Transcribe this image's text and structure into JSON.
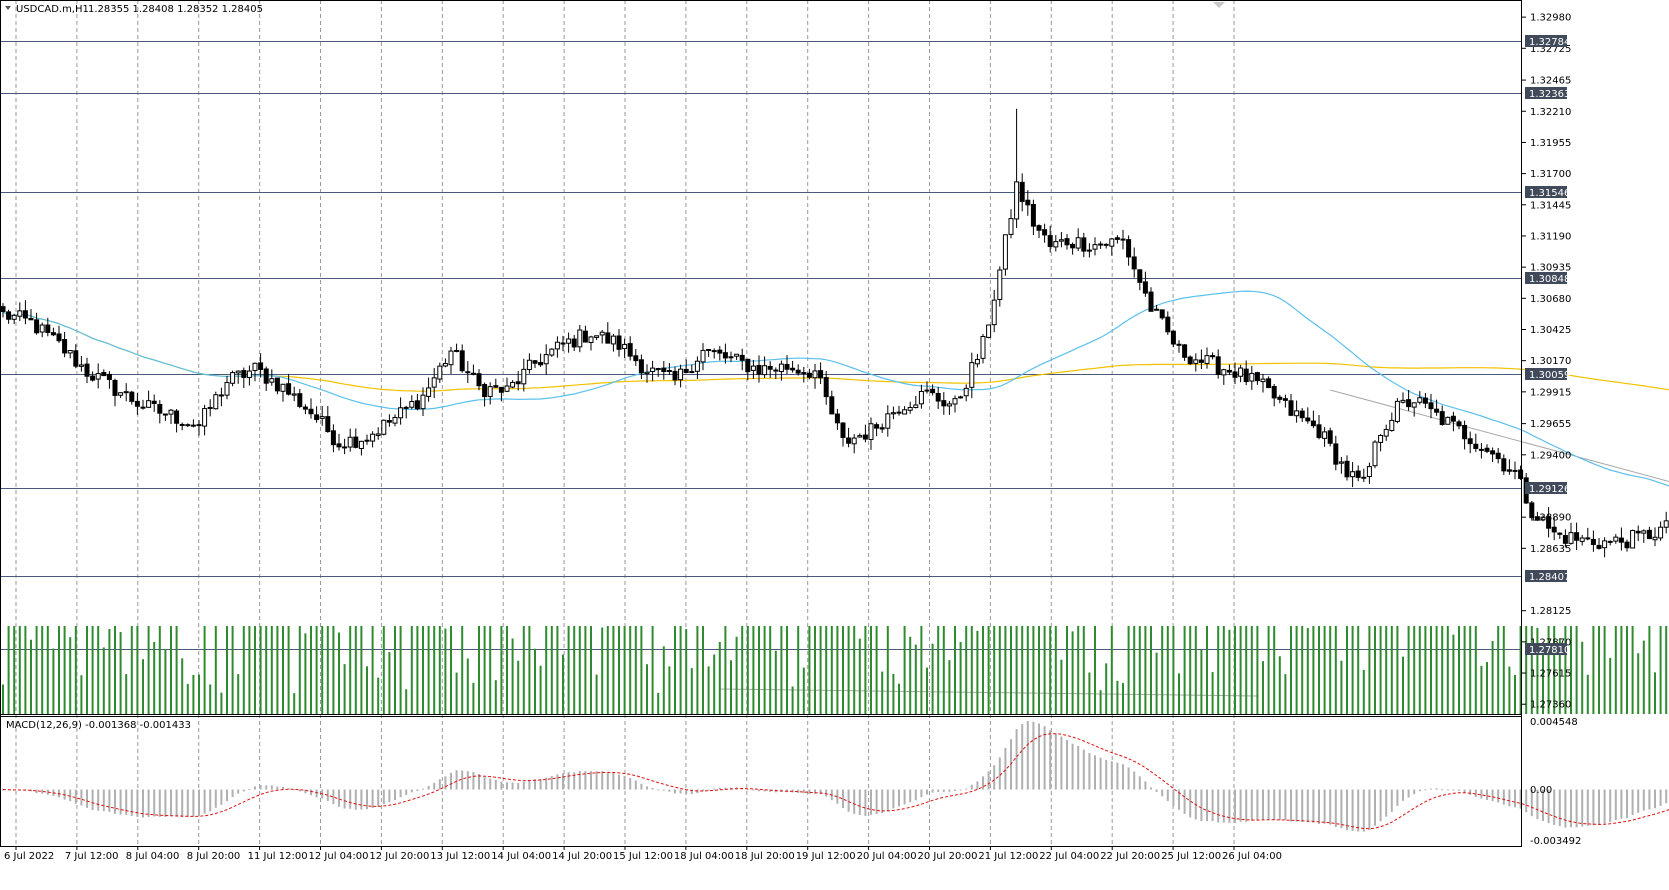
{
  "header": {
    "symbol_timeframe": "USDCAD.m,H1",
    "ohlc_values": "1.28355 1.28408 1.28352 1.28405"
  },
  "macd": {
    "label": "MACD(12,26,9) -0.001368 -0.001433",
    "scale_labels": [
      "0.004548",
      "0.00",
      "-0.003492"
    ]
  },
  "colors": {
    "candle": "#000000",
    "volume": "#2e8b2e",
    "ma_fast": "#5bc0eb",
    "ma_slow": "#f2c200",
    "horizontal_levels": "#4a5a7a",
    "macd_hist": "#b0b0b0",
    "macd_signal": "#e01010",
    "trendline": "#a8a8a8",
    "highlight_box": "#3a5ea8"
  },
  "chart_data": {
    "type": "candlestick",
    "symbol": "USDCAD.m",
    "timeframe": "H1",
    "price_axis_labels": [
      "1.32980",
      "1.32725",
      "1.32465",
      "1.32210",
      "1.31955",
      "1.31700",
      "1.31445",
      "1.31190",
      "1.30935",
      "1.30680",
      "1.30425",
      "1.30170",
      "1.29915",
      "1.29655",
      "1.29400",
      "1.28890",
      "1.28635",
      "1.28125",
      "1.27870",
      "1.27615",
      "1.27360"
    ],
    "price_range": [
      1.2728,
      1.3312
    ],
    "time_axis_labels": [
      "6 Jul 2022",
      "7 Jul 12:00",
      "8 Jul 04:00",
      "8 Jul 20:00",
      "11 Jul 12:00",
      "12 Jul 04:00",
      "12 Jul 20:00",
      "13 Jul 12:00",
      "14 Jul 04:00",
      "14 Jul 20:00",
      "15 Jul 12:00",
      "18 Jul 04:00",
      "18 Jul 20:00",
      "19 Jul 12:00",
      "20 Jul 04:00",
      "20 Jul 20:00",
      "21 Jul 12:00",
      "22 Jul 04:00",
      "22 Jul 20:00",
      "25 Jul 12:00",
      "26 Jul 04:00"
    ],
    "horizontal_levels": [
      "1.32784",
      "1.32363",
      "1.31546",
      "1.30848",
      "1.30059",
      "1.29126",
      "1.28407",
      "1.27810"
    ],
    "current_price_label": "1.28407",
    "close_anchors": [
      [
        0,
        1.3055
      ],
      [
        5,
        1.3048
      ],
      [
        10,
        1.303
      ],
      [
        15,
        1.3008
      ],
      [
        20,
        1.2994
      ],
      [
        25,
        1.298
      ],
      [
        30,
        1.2972
      ],
      [
        35,
        1.2964
      ],
      [
        40,
        1.3
      ],
      [
        45,
        1.301
      ],
      [
        50,
        1.2995
      ],
      [
        55,
        1.2975
      ],
      [
        60,
        1.295
      ],
      [
        65,
        1.2955
      ],
      [
        70,
        1.297
      ],
      [
        75,
        1.2988
      ],
      [
        80,
        1.3025
      ],
      [
        85,
        1.2995
      ],
      [
        90,
        1.2992
      ],
      [
        95,
        1.3015
      ],
      [
        100,
        1.303
      ],
      [
        105,
        1.304
      ],
      [
        110,
        1.303
      ],
      [
        115,
        1.301
      ],
      [
        120,
        1.3
      ],
      [
        125,
        1.3025
      ],
      [
        130,
        1.3018
      ],
      [
        135,
        1.301
      ],
      [
        140,
        1.3012
      ],
      [
        145,
        1.3008
      ],
      [
        150,
        1.295
      ],
      [
        155,
        1.296
      ],
      [
        160,
        1.298
      ],
      [
        165,
        1.299
      ],
      [
        170,
        1.298
      ],
      [
        175,
        1.303
      ],
      [
        178,
        1.309
      ],
      [
        181,
        1.316
      ],
      [
        184,
        1.313
      ],
      [
        187,
        1.311
      ],
      [
        190,
        1.3115
      ],
      [
        195,
        1.3112
      ],
      [
        200,
        1.3115
      ],
      [
        205,
        1.306
      ],
      [
        210,
        1.3025
      ],
      [
        215,
        1.3015
      ],
      [
        220,
        1.3008
      ],
      [
        225,
        1.2995
      ],
      [
        230,
        1.2975
      ],
      [
        235,
        1.296
      ],
      [
        240,
        1.2925
      ],
      [
        243,
        1.2915
      ],
      [
        246,
        1.296
      ],
      [
        249,
        1.2978
      ],
      [
        252,
        1.2985
      ],
      [
        255,
        1.2975
      ],
      [
        260,
        1.296
      ],
      [
        265,
        1.2945
      ],
      [
        270,
        1.2925
      ],
      [
        273,
        1.2895
      ],
      [
        277,
        1.2875
      ],
      [
        282,
        1.287
      ],
      [
        287,
        1.2868
      ],
      [
        292,
        1.2872
      ],
      [
        297,
        1.288
      ],
      [
        302,
        1.289
      ],
      [
        307,
        1.2895
      ],
      [
        312,
        1.2892
      ],
      [
        317,
        1.2883
      ],
      [
        322,
        1.2875
      ],
      [
        327,
        1.29
      ],
      [
        332,
        1.2918
      ],
      [
        335,
        1.2925
      ],
      [
        338,
        1.29
      ],
      [
        342,
        1.2885
      ],
      [
        347,
        1.2882
      ],
      [
        352,
        1.288
      ],
      [
        357,
        1.2888
      ],
      [
        360,
        1.289
      ],
      [
        365,
        1.288
      ],
      [
        368,
        1.286
      ],
      [
        372,
        1.2835
      ],
      [
        375,
        1.288
      ],
      [
        379,
        1.292
      ],
      [
        383,
        1.2925
      ],
      [
        386,
        1.293
      ],
      [
        389,
        1.2935
      ],
      [
        392,
        1.2928
      ],
      [
        395,
        1.29
      ],
      [
        398,
        1.287
      ],
      [
        402,
        1.2855
      ],
      [
        407,
        1.2845
      ],
      [
        411,
        1.2848
      ],
      [
        414,
        1.2852
      ],
      [
        417,
        1.2845
      ],
      [
        420,
        1.2835
      ],
      [
        421,
        1.28405
      ]
    ],
    "high_anchors": [
      [
        181,
        1.3223
      ],
      [
        337,
        1.294
      ],
      [
        385,
        1.2945
      ]
    ],
    "low_anchors": [
      [
        372,
        1.2828
      ],
      [
        420,
        1.283
      ]
    ],
    "volume_range": [
      0,
      100
    ],
    "macd_range": [
      -0.003492,
      0.004548
    ]
  }
}
